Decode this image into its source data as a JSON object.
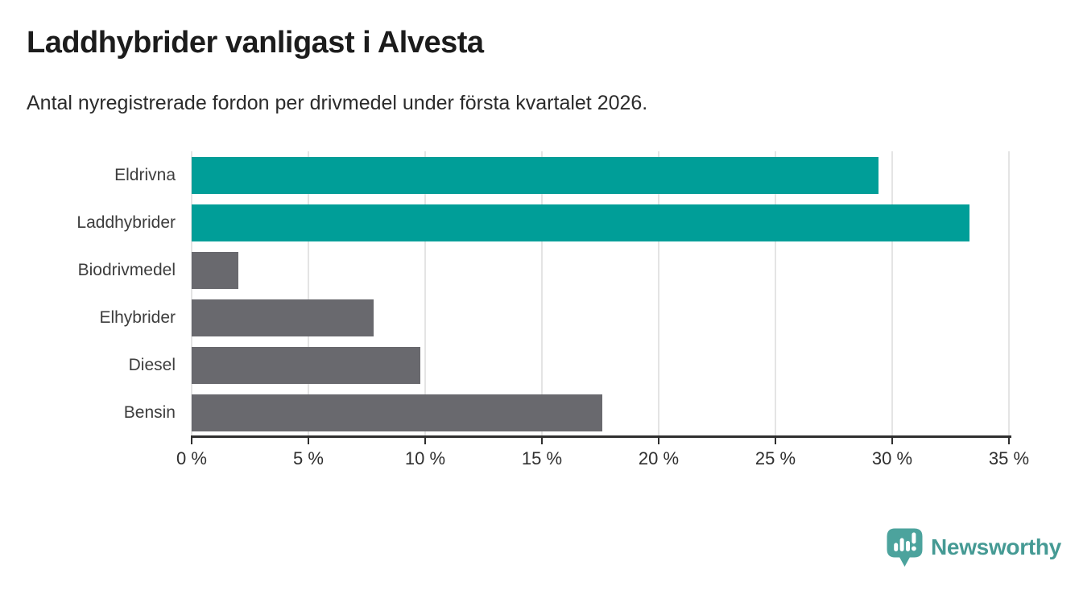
{
  "chart_data": {
    "type": "bar",
    "orientation": "horizontal",
    "title": "Laddhybrider vanligast i Alvesta",
    "subtitle": "Antal nyregistrerade fordon per drivmedel under första kvartalet 2026.",
    "categories": [
      "Eldrivna",
      "Laddhybrider",
      "Biodrivmedel",
      "Elhybrider",
      "Diesel",
      "Bensin"
    ],
    "values": [
      29.4,
      33.3,
      2.0,
      7.8,
      9.8,
      17.6
    ],
    "unit": "%",
    "xlabel": "",
    "ylabel": "",
    "xlim": [
      0,
      35
    ],
    "tick_step": 5,
    "tick_labels": [
      "0 %",
      "5 %",
      "10 %",
      "15 %",
      "20 %",
      "25 %",
      "30 %",
      "35 %"
    ],
    "grid": true,
    "legend": false,
    "bar_colors": [
      "#009E98",
      "#009E98",
      "#69696E",
      "#69696E",
      "#69696E",
      "#69696E"
    ],
    "colors": {
      "highlight": "#009E98",
      "default": "#69696E",
      "grid": "#E4E4E4",
      "axis": "#2F2F2F"
    }
  },
  "footer": {
    "brand": "Newsworthy",
    "brand_color": "#459A94",
    "icon": "newsworthy-pin-icon",
    "icon_color": "#4CA39D"
  }
}
